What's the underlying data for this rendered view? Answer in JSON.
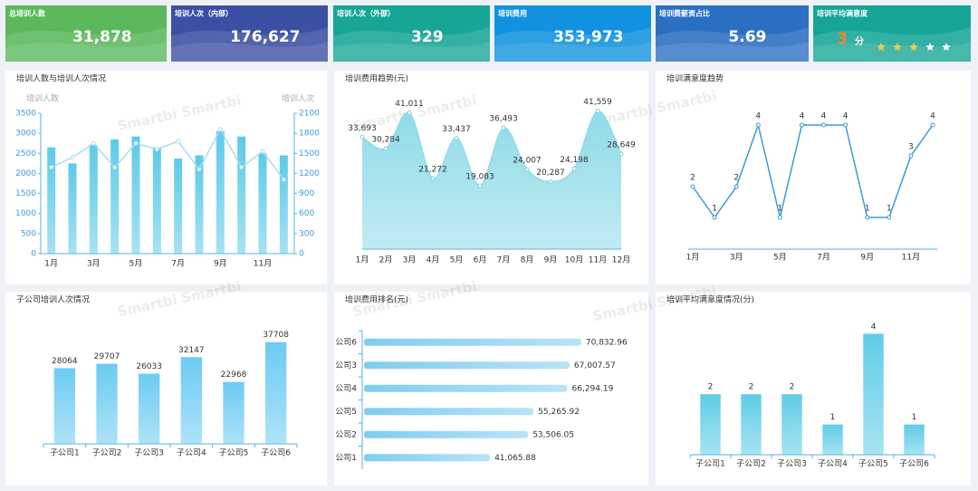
{
  "watermark": "Smartbi Smartbi",
  "kpis": [
    {
      "label": "总培训人数",
      "value": "31,878",
      "color": "#5cb85c"
    },
    {
      "label": "培训人次（内部）",
      "value": "176,627",
      "color": "#3b4fa3"
    },
    {
      "label": "培训人次（外部）",
      "value": "329",
      "color": "#17a596"
    },
    {
      "label": "培训费用",
      "value": "353,973",
      "color": "#1192e0"
    },
    {
      "label": "培训费薪资占比",
      "value": "5.69",
      "color": "#2b6fc2"
    },
    {
      "label": "培训平均满意度",
      "value": 3,
      "unit": "分",
      "color": "#16a597"
    }
  ],
  "chart_data": [
    {
      "type": "combo",
      "title": "培训人数与培训人次情况",
      "ylabel": "培训人数",
      "y2label": "培训人次",
      "categories": [
        "1月",
        null,
        "3月",
        null,
        "5月",
        null,
        "7月",
        null,
        "9月",
        null,
        "11月",
        null
      ],
      "series": [
        {
          "type": "bar",
          "color": "#5ccbe8",
          "values": [
            2650,
            2250,
            2700,
            2850,
            2920,
            2650,
            2370,
            2450,
            3050,
            2920,
            2500,
            2450
          ]
        },
        {
          "type": "line",
          "axis": "y2",
          "color": "#a9dcf3",
          "values": [
            1290,
            1440,
            1650,
            1290,
            1650,
            1560,
            1680,
            1260,
            1860,
            1290,
            1530,
            1110
          ]
        }
      ],
      "ylim": [
        0,
        3500
      ],
      "yticks": [
        0,
        500,
        1000,
        1500,
        2000,
        2500,
        3000,
        3500
      ],
      "y2lim": [
        0,
        2100
      ],
      "y2ticks": [
        0,
        300,
        600,
        900,
        1200,
        1500,
        1800,
        2100
      ]
    },
    {
      "type": "area",
      "title": "培训费用趋势(元)",
      "categories": [
        "1月",
        "2月",
        "3月",
        "4月",
        "5月",
        "6月",
        "7月",
        "8月",
        "9月",
        "10月",
        "11月",
        "12月"
      ],
      "values": [
        33693,
        30284,
        41011,
        21272,
        33437,
        19083,
        36493,
        24007,
        20287,
        24198,
        41559,
        28649
      ],
      "value_labels": [
        "33,693",
        "30,284",
        "41,011",
        "21,272",
        "33,437",
        "19,083",
        "36,493",
        "24,007",
        "20,287",
        "24,198",
        "41,559",
        "28,649"
      ],
      "color": "#8fdbe8",
      "ylim": [
        0,
        45000
      ]
    },
    {
      "type": "line",
      "title": "培训满意度趋势",
      "categories": [
        "1月",
        null,
        "3月",
        null,
        "5月",
        null,
        "7月",
        null,
        "9月",
        null,
        "11月",
        null
      ],
      "values": [
        2,
        1,
        2,
        4,
        1,
        4,
        4,
        4,
        1,
        1,
        3,
        4
      ],
      "color": "#3a9bd0",
      "ylim": [
        0,
        5
      ]
    },
    {
      "type": "bar",
      "title": "子公司培训人次情况",
      "categories": [
        "子公司1",
        "子公司2",
        "子公司3",
        "子公司4",
        "子公司5",
        "子公司6"
      ],
      "values": [
        28064,
        29707,
        26033,
        32147,
        22968,
        37708
      ],
      "color": "#6ccbf3",
      "ylim": [
        0,
        45000
      ]
    },
    {
      "type": "barh",
      "title": "培训费用排名(元)",
      "categories": [
        "公司6",
        "公司3",
        "公司4",
        "公司5",
        "公司2",
        "公司1"
      ],
      "values": [
        70832.96,
        67007.57,
        66294.19,
        55265.92,
        53506.05,
        41065.88
      ],
      "value_labels": [
        "70,832.96",
        "67,007.57",
        "66,294.19",
        "55,265.92",
        "53,506.05",
        "41,065.88"
      ],
      "color": "#7fcdf0",
      "xlim": [
        0,
        75000
      ]
    },
    {
      "type": "bar",
      "title": "培训平均满意度情况(分)",
      "categories": [
        "子公司1",
        "子公司2",
        "子公司3",
        "子公司4",
        "子公司5",
        "子公司6"
      ],
      "values": [
        2,
        2,
        2,
        1,
        4,
        1
      ],
      "color": "#5fcde6",
      "ylim": [
        0,
        5
      ]
    }
  ]
}
